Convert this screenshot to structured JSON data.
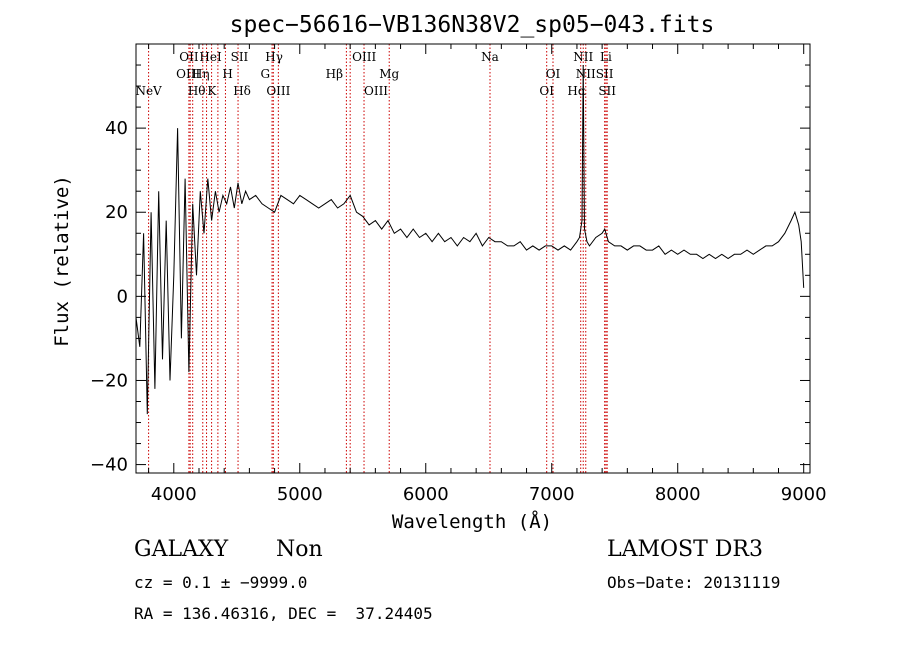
{
  "chart_data": {
    "type": "line",
    "title": "spec−56616−VB136N38V2_sp05−043.fits",
    "xlabel": "Wavelength (Å)",
    "ylabel": "Flux (relative)",
    "xlim": [
      3700,
      9050
    ],
    "ylim": [
      -42,
      60
    ],
    "xticks": [
      4000,
      5000,
      6000,
      7000,
      8000,
      9000
    ],
    "xtick_labels": [
      "4000",
      "5000",
      "6000",
      "7000",
      "8000",
      "9000"
    ],
    "yticks": [
      -40,
      -20,
      0,
      20,
      40
    ],
    "ytick_labels": [
      "−40",
      "−20",
      "0",
      "20",
      "40"
    ],
    "grid": false,
    "line_color": "#000000",
    "marker_color": "#cc0000",
    "spectrum": {
      "x": [
        3700,
        3730,
        3760,
        3790,
        3820,
        3850,
        3880,
        3910,
        3940,
        3970,
        4000,
        4030,
        4060,
        4090,
        4120,
        4150,
        4180,
        4210,
        4240,
        4270,
        4300,
        4330,
        4360,
        4390,
        4420,
        4450,
        4480,
        4510,
        4540,
        4570,
        4600,
        4650,
        4700,
        4750,
        4800,
        4850,
        4900,
        4950,
        5000,
        5050,
        5100,
        5150,
        5200,
        5250,
        5300,
        5350,
        5400,
        5450,
        5500,
        5550,
        5600,
        5650,
        5700,
        5750,
        5800,
        5850,
        5900,
        5950,
        6000,
        6050,
        6100,
        6150,
        6200,
        6250,
        6300,
        6350,
        6400,
        6450,
        6500,
        6550,
        6600,
        6650,
        6700,
        6750,
        6800,
        6850,
        6900,
        6950,
        7000,
        7050,
        7100,
        7150,
        7200,
        7220,
        7240,
        7250,
        7260,
        7280,
        7300,
        7350,
        7400,
        7420,
        7450,
        7500,
        7550,
        7600,
        7650,
        7700,
        7750,
        7800,
        7850,
        7900,
        7950,
        8000,
        8050,
        8100,
        8150,
        8200,
        8250,
        8300,
        8350,
        8400,
        8450,
        8500,
        8550,
        8600,
        8650,
        8700,
        8750,
        8800,
        8850,
        8900,
        8930,
        8960,
        8980,
        9000
      ],
      "y": [
        -5,
        -12,
        15,
        -28,
        20,
        -22,
        25,
        -15,
        18,
        -20,
        5,
        40,
        -10,
        28,
        -18,
        22,
        5,
        25,
        15,
        28,
        18,
        25,
        20,
        24,
        22,
        26,
        21,
        27,
        22,
        25,
        23,
        24,
        22,
        21,
        20,
        24,
        23,
        22,
        24,
        23,
        22,
        21,
        22,
        23,
        21,
        22,
        24,
        20,
        19,
        17,
        18,
        16,
        18,
        15,
        16,
        14,
        16,
        14,
        15,
        13,
        15,
        13,
        14,
        12,
        14,
        13,
        15,
        12,
        14,
        13,
        13,
        12,
        12,
        13,
        11,
        12,
        11,
        12,
        12,
        11,
        12,
        11,
        13,
        14,
        18,
        55,
        16,
        13,
        12,
        14,
        15,
        16,
        13,
        12,
        12,
        11,
        12,
        12,
        11,
        11,
        12,
        10,
        11,
        10,
        11,
        10,
        10,
        9,
        10,
        9,
        10,
        9,
        10,
        10,
        11,
        10,
        11,
        12,
        12,
        13,
        15,
        18,
        20,
        17,
        13,
        2
      ]
    },
    "lines": [
      {
        "name": "NeV",
        "wave": 3800,
        "row": 3,
        "dx": 0
      },
      {
        "name": "OII",
        "wave": 4120,
        "row": 0,
        "dx": 0
      },
      {
        "name": "OIII",
        "wave": 4130,
        "row": 1,
        "dx": -2
      },
      {
        "name": "Hθ",
        "wave": 4150,
        "row": 3,
        "dx": 4
      },
      {
        "name": "Hη",
        "wave": 4230,
        "row": 1,
        "dx": -2
      },
      {
        "name": "HeI",
        "wave": 4260,
        "row": 0,
        "dx": 4
      },
      {
        "name": "H",
        "wave": 4300,
        "row": 1,
        "dx": 16
      },
      {
        "name": "K",
        "wave": 4350,
        "row": 3,
        "dx": -6
      },
      {
        "name": "SII",
        "wave": 4410,
        "row": 0,
        "dx": 14
      },
      {
        "name": "Hδ",
        "wave": 4510,
        "row": 3,
        "dx": 4
      },
      {
        "name": "Hγ",
        "wave": 4780,
        "row": 0,
        "dx": 2
      },
      {
        "name": "G",
        "wave": 4790,
        "row": 1,
        "dx": -8
      },
      {
        "name": "OIII",
        "wave": 4830,
        "row": 3,
        "dx": 0
      },
      {
        "name": "OIII",
        "wave": 5400,
        "row": 0,
        "dx": 14
      },
      {
        "name": "Hβ",
        "wave": 5370,
        "row": 2,
        "dx": -12
      },
      {
        "name": "OIII",
        "wave": 5510,
        "row": 3,
        "dx": 12
      },
      {
        "name": "Mg",
        "wave": 5710,
        "row": 2,
        "dx": 0
      },
      {
        "name": "Na",
        "wave": 6510,
        "row": 0,
        "dx": 0
      },
      {
        "name": "OI",
        "wave": 6960,
        "row": 3,
        "dx": 0
      },
      {
        "name": "OI",
        "wave": 7010,
        "row": 1,
        "dx": 0
      },
      {
        "name": "NII",
        "wave": 7250,
        "row": 0,
        "dx": 0
      },
      {
        "name": "NII",
        "wave": 7270,
        "row": 2,
        "dx": 0
      },
      {
        "name": "Hα",
        "wave": 7230,
        "row": 3,
        "dx": -4
      },
      {
        "name": "Li",
        "wave": 7430,
        "row": 0,
        "dx": 0
      },
      {
        "name": "SII",
        "wave": 7420,
        "row": 2,
        "dx": 0
      },
      {
        "name": "SII",
        "wave": 7440,
        "row": 3,
        "dx": 0
      }
    ]
  },
  "info": {
    "object_class": "GALAXY",
    "subclass": "Non",
    "survey": "LAMOST DR3",
    "cz": "cz = 0.1 ± −9999.0",
    "obs_date": "Obs−Date: 20131119",
    "coords": "RA = 136.46316, DEC =  37.24405"
  }
}
